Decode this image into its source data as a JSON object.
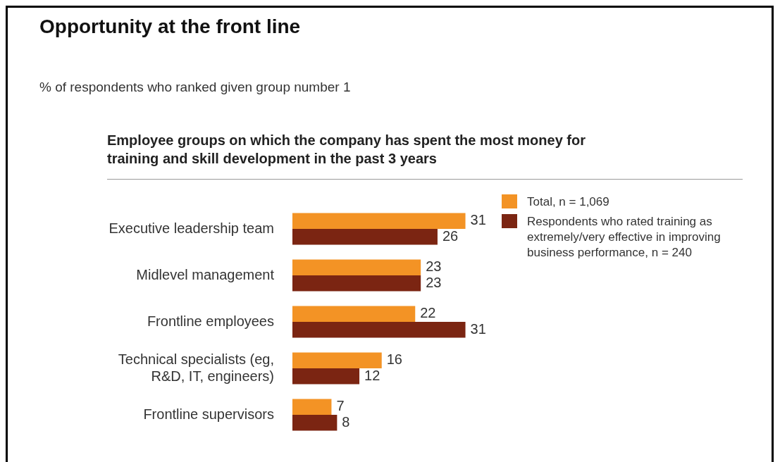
{
  "chart_data": {
    "type": "bar",
    "orientation": "horizontal",
    "title": "Opportunity at the front line",
    "subtitle": "% of respondents who ranked given group number 1",
    "annotations": [
      "Employee groups on which the company has spent the most money for training and skill development in the past 3 years"
    ],
    "categories": [
      "Executive leadership team",
      "Midlevel management",
      "Frontline employees",
      "Technical specialists (eg, R&D, IT, engineers)",
      "Frontline supervisors"
    ],
    "series": [
      {
        "name": "Total, n = 1,069",
        "color": "#f39325",
        "values": [
          31,
          23,
          22,
          16,
          7
        ]
      },
      {
        "name": "Respondents who rated training as extremely/very effective in improving business performance, n = 240",
        "color": "#7b2512",
        "values": [
          26,
          23,
          31,
          12,
          8
        ]
      }
    ],
    "data_labels": true,
    "legend": "right"
  }
}
